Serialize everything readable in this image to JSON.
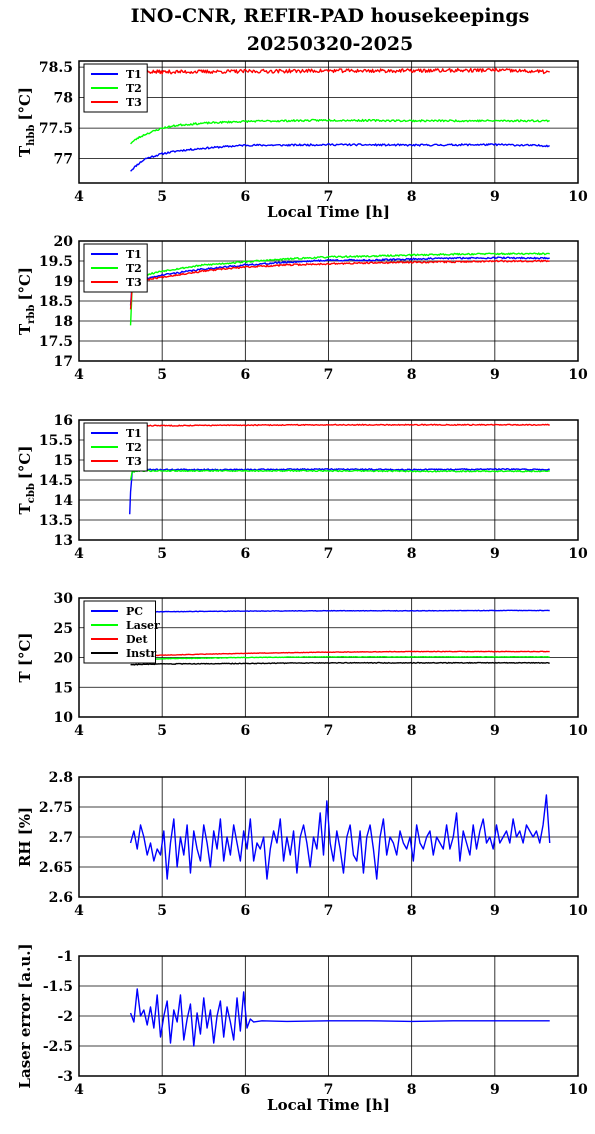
{
  "title_line1": "INO-CNR, REFIR-PAD housekeepings",
  "title_line2": "20250320-2025",
  "colors": {
    "blue": "#0000ff",
    "green": "#00ff00",
    "red": "#ff0000",
    "black": "#000000"
  },
  "chart_data": [
    {
      "type": "line",
      "ylabel": "T",
      "ylabel_sub": "hbb",
      "ylabel_unit": "[°C]",
      "xlabel": "Local Time [h]",
      "xlim": [
        4,
        10
      ],
      "ylim": [
        76.6,
        78.6
      ],
      "yticks": [
        77,
        77.5,
        78,
        78.5
      ],
      "ytick_labels": [
        "77",
        "77.5",
        "78",
        "78.5"
      ],
      "xticks": [
        4,
        5,
        6,
        7,
        8,
        9,
        10
      ],
      "xtick_labels": [
        "4",
        "5",
        "6",
        "7",
        "8",
        "9",
        "10"
      ],
      "grid": true,
      "legend": "top-left",
      "legend_width": 0.82,
      "series": [
        {
          "name": "T1",
          "color": "#0000ff",
          "noise": 0.015,
          "seed": 11,
          "x": [
            4.62,
            4.7,
            4.8,
            5.0,
            5.2,
            5.5,
            5.8,
            6.0,
            6.5,
            7.0,
            8.0,
            9.0,
            9.66
          ],
          "y": [
            76.8,
            76.9,
            77.0,
            77.08,
            77.13,
            77.17,
            77.2,
            77.22,
            77.22,
            77.23,
            77.22,
            77.23,
            77.21
          ]
        },
        {
          "name": "T2",
          "color": "#00ff00",
          "noise": 0.015,
          "seed": 23,
          "x": [
            4.62,
            4.7,
            4.8,
            5.0,
            5.2,
            5.5,
            5.8,
            6.0,
            6.5,
            7.0,
            8.0,
            9.0,
            9.66
          ],
          "y": [
            77.25,
            77.33,
            77.4,
            77.5,
            77.55,
            77.58,
            77.6,
            77.61,
            77.62,
            77.63,
            77.62,
            77.62,
            77.62
          ]
        },
        {
          "name": "T3",
          "color": "#ff0000",
          "noise": 0.03,
          "seed": 37,
          "x": [
            4.62,
            5.0,
            6.0,
            7.0,
            8.0,
            9.0,
            9.66
          ],
          "y": [
            78.43,
            78.42,
            78.43,
            78.44,
            78.44,
            78.45,
            78.42
          ]
        }
      ]
    },
    {
      "type": "line",
      "ylabel": "T",
      "ylabel_sub": "rbb",
      "ylabel_unit": "[°C]",
      "xlabel": "",
      "xlim": [
        4,
        10
      ],
      "ylim": [
        17,
        20
      ],
      "yticks": [
        17,
        17.5,
        18,
        18.5,
        19,
        19.5,
        20
      ],
      "ytick_labels": [
        "17",
        "17.5",
        "18",
        "18.5",
        "19",
        "19.5",
        "20"
      ],
      "xticks": [
        4,
        5,
        6,
        7,
        8,
        9,
        10
      ],
      "xtick_labels": [
        "4",
        "5",
        "6",
        "7",
        "8",
        "9",
        "10"
      ],
      "grid": true,
      "legend": "top-left",
      "legend_width": 0.82,
      "series": [
        {
          "name": "T1",
          "color": "#0000ff",
          "noise": 0.02,
          "seed": 41,
          "x": [
            4.62,
            4.64,
            4.7,
            5.0,
            5.5,
            6.0,
            6.5,
            7.0,
            7.5,
            8.0,
            8.5,
            9.0,
            9.66
          ],
          "y": [
            18.4,
            18.9,
            19.0,
            19.15,
            19.3,
            19.4,
            19.47,
            19.52,
            19.52,
            19.55,
            19.57,
            19.58,
            19.57
          ]
        },
        {
          "name": "T2",
          "color": "#00ff00",
          "noise": 0.02,
          "seed": 53,
          "x": [
            4.62,
            4.64,
            4.7,
            5.0,
            5.5,
            6.0,
            6.5,
            7.0,
            7.5,
            8.0,
            8.5,
            9.0,
            9.66
          ],
          "y": [
            17.9,
            18.9,
            19.1,
            19.25,
            19.4,
            19.48,
            19.55,
            19.6,
            19.62,
            19.65,
            19.67,
            19.68,
            19.68
          ]
        },
        {
          "name": "T3",
          "color": "#ff0000",
          "noise": 0.02,
          "seed": 67,
          "x": [
            4.62,
            4.64,
            4.7,
            5.0,
            5.5,
            6.0,
            6.5,
            7.0,
            7.5,
            8.0,
            8.5,
            9.0,
            9.66
          ],
          "y": [
            18.3,
            18.9,
            19.0,
            19.1,
            19.25,
            19.35,
            19.4,
            19.43,
            19.45,
            19.47,
            19.48,
            19.5,
            19.5
          ]
        }
      ]
    },
    {
      "type": "line",
      "ylabel": "T",
      "ylabel_sub": "cbb",
      "ylabel_unit": "[°C]",
      "xlabel": "",
      "xlim": [
        4,
        10
      ],
      "ylim": [
        13,
        16
      ],
      "yticks": [
        13,
        13.5,
        14,
        14.5,
        15,
        15.5,
        16
      ],
      "ytick_labels": [
        "13",
        "13.5",
        "14",
        "14.5",
        "15",
        "15.5",
        "16"
      ],
      "xticks": [
        4,
        5,
        6,
        7,
        8,
        9,
        10
      ],
      "xtick_labels": [
        "4",
        "5",
        "6",
        "7",
        "8",
        "9",
        "10"
      ],
      "grid": true,
      "legend": "top-left",
      "legend_width": 0.82,
      "series": [
        {
          "name": "T1",
          "color": "#0000ff",
          "noise": 0.015,
          "seed": 71,
          "x": [
            4.61,
            4.62,
            4.64,
            4.7,
            5.0,
            6.0,
            7.0,
            8.0,
            9.0,
            9.66
          ],
          "y": [
            13.65,
            14.2,
            14.7,
            14.76,
            14.76,
            14.76,
            14.77,
            14.76,
            14.77,
            14.76
          ]
        },
        {
          "name": "T2",
          "color": "#00ff00",
          "noise": 0.015,
          "seed": 79,
          "x": [
            4.62,
            4.64,
            4.7,
            5.0,
            6.0,
            7.0,
            8.0,
            9.0,
            9.66
          ],
          "y": [
            14.5,
            14.7,
            14.73,
            14.73,
            14.73,
            14.73,
            14.72,
            14.72,
            14.72
          ]
        },
        {
          "name": "T3",
          "color": "#ff0000",
          "noise": 0.012,
          "seed": 83,
          "x": [
            4.62,
            5.0,
            6.0,
            7.0,
            8.0,
            9.0,
            9.66
          ],
          "y": [
            15.86,
            15.86,
            15.87,
            15.88,
            15.88,
            15.88,
            15.88
          ]
        }
      ]
    },
    {
      "type": "line",
      "ylabel": "T [°C]",
      "ylabel_sub": "",
      "ylabel_unit": "",
      "xlabel": "",
      "xlim": [
        4,
        10
      ],
      "ylim": [
        10,
        30
      ],
      "yticks": [
        10,
        15,
        20,
        25,
        30
      ],
      "ytick_labels": [
        "10",
        "15",
        "20",
        "25",
        "30"
      ],
      "xticks": [
        4,
        5,
        6,
        7,
        8,
        9,
        10
      ],
      "xtick_labels": [
        "4",
        "5",
        "6",
        "7",
        "8",
        "9",
        "10"
      ],
      "grid": true,
      "legend": "top-left",
      "legend_width": 0.92,
      "series": [
        {
          "name": "PC",
          "color": "#0000ff",
          "noise": 0.04,
          "seed": 89,
          "x": [
            4.62,
            5.0,
            6.0,
            7.0,
            8.0,
            9.0,
            9.66
          ],
          "y": [
            27.6,
            27.7,
            27.8,
            27.85,
            27.85,
            27.9,
            27.9
          ]
        },
        {
          "name": "Laser",
          "color": "#00ff00",
          "noise": 0.04,
          "seed": 97,
          "x": [
            4.62,
            5.0,
            6.0,
            7.0,
            8.0,
            9.0,
            9.66
          ],
          "y": [
            19.7,
            19.8,
            20.0,
            20.1,
            20.1,
            20.1,
            20.1
          ]
        },
        {
          "name": "Det",
          "color": "#ff0000",
          "noise": 0.04,
          "seed": 101,
          "x": [
            4.62,
            5.0,
            6.0,
            7.0,
            8.0,
            9.0,
            9.66
          ],
          "y": [
            20.2,
            20.4,
            20.7,
            20.9,
            21.0,
            21.0,
            21.0
          ]
        },
        {
          "name": "Instr",
          "color": "#000000",
          "noise": 0.06,
          "seed": 103,
          "x": [
            4.62,
            5.0,
            6.0,
            7.0,
            8.0,
            9.0,
            9.66
          ],
          "y": [
            18.8,
            18.9,
            19.0,
            19.1,
            19.1,
            19.1,
            19.1
          ]
        }
      ]
    },
    {
      "type": "line",
      "ylabel": "RH [%]",
      "ylabel_sub": "",
      "ylabel_unit": "",
      "xlabel": "",
      "xlim": [
        4,
        10
      ],
      "ylim": [
        2.6,
        2.8
      ],
      "yticks": [
        2.6,
        2.65,
        2.7,
        2.75,
        2.8
      ],
      "ytick_labels": [
        "2.6",
        "2.65",
        "2.7",
        "2.75",
        "2.8"
      ],
      "xticks": [
        4,
        5,
        6,
        7,
        8,
        9,
        10
      ],
      "xtick_labels": [
        "4",
        "5",
        "6",
        "7",
        "8",
        "9",
        "10"
      ],
      "grid": true,
      "legend": "none",
      "series": [
        {
          "name": "",
          "color": "#0000ff",
          "noise": 0,
          "seed": 1,
          "x": [
            4.62,
            4.66,
            4.7,
            4.74,
            4.78,
            4.82,
            4.86,
            4.9,
            4.94,
            4.98,
            5.02,
            5.06,
            5.1,
            5.14,
            5.18,
            5.22,
            5.26,
            5.3,
            5.34,
            5.38,
            5.42,
            5.46,
            5.5,
            5.54,
            5.58,
            5.62,
            5.66,
            5.7,
            5.74,
            5.78,
            5.82,
            5.86,
            5.9,
            5.94,
            5.98,
            6.02,
            6.06,
            6.1,
            6.14,
            6.18,
            6.22,
            6.26,
            6.3,
            6.34,
            6.38,
            6.42,
            6.46,
            6.5,
            6.54,
            6.58,
            6.62,
            6.66,
            6.7,
            6.74,
            6.78,
            6.82,
            6.86,
            6.9,
            6.94,
            6.98,
            7.02,
            7.06,
            7.1,
            7.14,
            7.18,
            7.22,
            7.26,
            7.3,
            7.34,
            7.38,
            7.42,
            7.46,
            7.5,
            7.54,
            7.58,
            7.62,
            7.66,
            7.7,
            7.74,
            7.78,
            7.82,
            7.86,
            7.9,
            7.94,
            7.98,
            8.02,
            8.06,
            8.1,
            8.14,
            8.18,
            8.22,
            8.26,
            8.3,
            8.34,
            8.38,
            8.42,
            8.46,
            8.5,
            8.54,
            8.58,
            8.62,
            8.66,
            8.7,
            8.74,
            8.78,
            8.82,
            8.86,
            8.9,
            8.94,
            8.98,
            9.02,
            9.06,
            9.1,
            9.14,
            9.18,
            9.22,
            9.26,
            9.3,
            9.34,
            9.38,
            9.42,
            9.46,
            9.5,
            9.54,
            9.58,
            9.62,
            9.66
          ],
          "y": [
            2.69,
            2.71,
            2.68,
            2.72,
            2.7,
            2.67,
            2.69,
            2.66,
            2.68,
            2.67,
            2.71,
            2.63,
            2.69,
            2.73,
            2.65,
            2.7,
            2.67,
            2.72,
            2.64,
            2.71,
            2.68,
            2.66,
            2.72,
            2.69,
            2.65,
            2.71,
            2.68,
            2.73,
            2.66,
            2.7,
            2.67,
            2.72,
            2.69,
            2.66,
            2.71,
            2.68,
            2.73,
            2.66,
            2.69,
            2.68,
            2.7,
            2.63,
            2.68,
            2.71,
            2.69,
            2.73,
            2.66,
            2.7,
            2.67,
            2.71,
            2.64,
            2.7,
            2.72,
            2.69,
            2.65,
            2.7,
            2.68,
            2.74,
            2.67,
            2.76,
            2.69,
            2.66,
            2.71,
            2.68,
            2.64,
            2.7,
            2.72,
            2.67,
            2.66,
            2.71,
            2.64,
            2.7,
            2.72,
            2.68,
            2.63,
            2.7,
            2.73,
            2.67,
            2.7,
            2.69,
            2.67,
            2.71,
            2.69,
            2.68,
            2.7,
            2.66,
            2.72,
            2.69,
            2.68,
            2.7,
            2.71,
            2.67,
            2.7,
            2.69,
            2.68,
            2.72,
            2.68,
            2.7,
            2.74,
            2.66,
            2.71,
            2.69,
            2.67,
            2.72,
            2.68,
            2.71,
            2.73,
            2.69,
            2.7,
            2.68,
            2.72,
            2.69,
            2.7,
            2.71,
            2.69,
            2.73,
            2.7,
            2.71,
            2.69,
            2.72,
            2.71,
            2.7,
            2.71,
            2.69,
            2.72,
            2.77,
            2.69
          ]
        }
      ]
    },
    {
      "type": "line",
      "ylabel": "Laser error [a.u.]",
      "ylabel_sub": "",
      "ylabel_unit": "",
      "xlabel": "Local Time [h]",
      "xlim": [
        4,
        10
      ],
      "ylim": [
        -3,
        -1
      ],
      "yticks": [
        -3,
        -2.5,
        -2,
        -1.5,
        -1
      ],
      "ytick_labels": [
        "-3",
        "-2.5",
        "-2",
        "-1.5",
        "-1"
      ],
      "xticks": [
        4,
        5,
        6,
        7,
        8,
        9,
        10
      ],
      "xtick_labels": [
        "4",
        "5",
        "6",
        "7",
        "8",
        "9",
        "10"
      ],
      "grid": true,
      "legend": "none",
      "series": [
        {
          "name": "",
          "color": "#0000ff",
          "noise": 0,
          "seed": 1,
          "x": [
            4.62,
            4.66,
            4.7,
            4.74,
            4.78,
            4.82,
            4.86,
            4.9,
            4.94,
            4.98,
            5.02,
            5.06,
            5.1,
            5.14,
            5.18,
            5.22,
            5.26,
            5.3,
            5.34,
            5.38,
            5.42,
            5.46,
            5.5,
            5.54,
            5.58,
            5.62,
            5.66,
            5.7,
            5.74,
            5.78,
            5.82,
            5.86,
            5.9,
            5.94,
            5.98,
            6.02,
            6.06,
            6.1,
            6.2,
            6.5,
            7.0,
            7.5,
            8.0,
            8.5,
            9.0,
            9.66
          ],
          "y": [
            -1.95,
            -2.1,
            -1.55,
            -2.0,
            -1.9,
            -2.15,
            -1.85,
            -2.2,
            -1.65,
            -2.35,
            -2.0,
            -1.75,
            -2.45,
            -1.9,
            -2.1,
            -1.65,
            -2.4,
            -2.05,
            -1.8,
            -2.5,
            -1.95,
            -2.3,
            -1.7,
            -2.2,
            -1.9,
            -2.45,
            -2.0,
            -1.75,
            -2.35,
            -1.85,
            -2.1,
            -2.4,
            -1.7,
            -2.25,
            -1.6,
            -2.2,
            -2.05,
            -2.1,
            -2.08,
            -2.09,
            -2.08,
            -2.08,
            -2.09,
            -2.08,
            -2.08,
            -2.08
          ]
        }
      ]
    }
  ]
}
